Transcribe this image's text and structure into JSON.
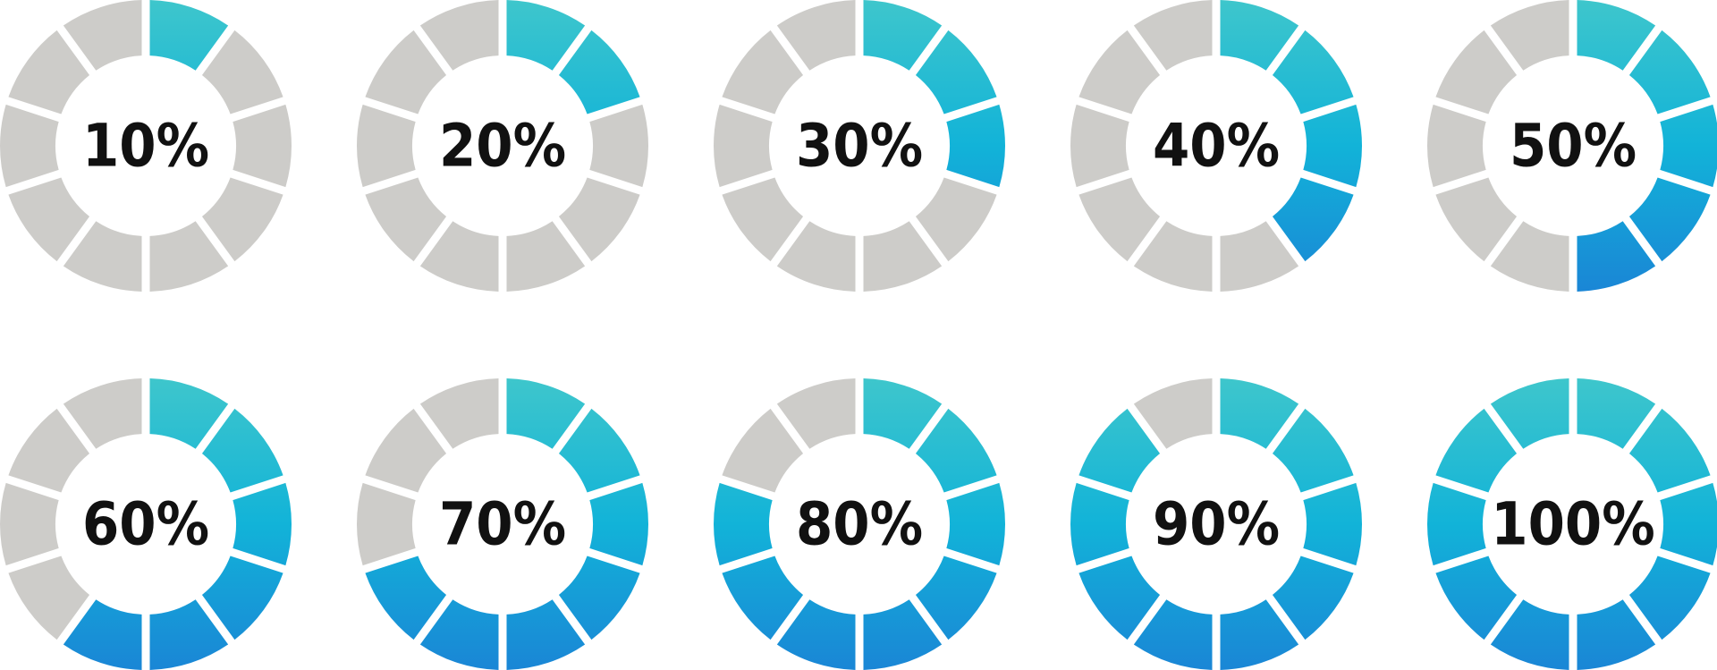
{
  "gauges": [
    {
      "label": "10%",
      "value": 10
    },
    {
      "label": "20%",
      "value": 20
    },
    {
      "label": "30%",
      "value": 30
    },
    {
      "label": "40%",
      "value": 40
    },
    {
      "label": "50%",
      "value": 50
    },
    {
      "label": "60%",
      "value": 60
    },
    {
      "label": "70%",
      "value": 70
    },
    {
      "label": "80%",
      "value": 80
    },
    {
      "label": "90%",
      "value": 90
    },
    {
      "label": "100%",
      "value": 100
    }
  ]
}
